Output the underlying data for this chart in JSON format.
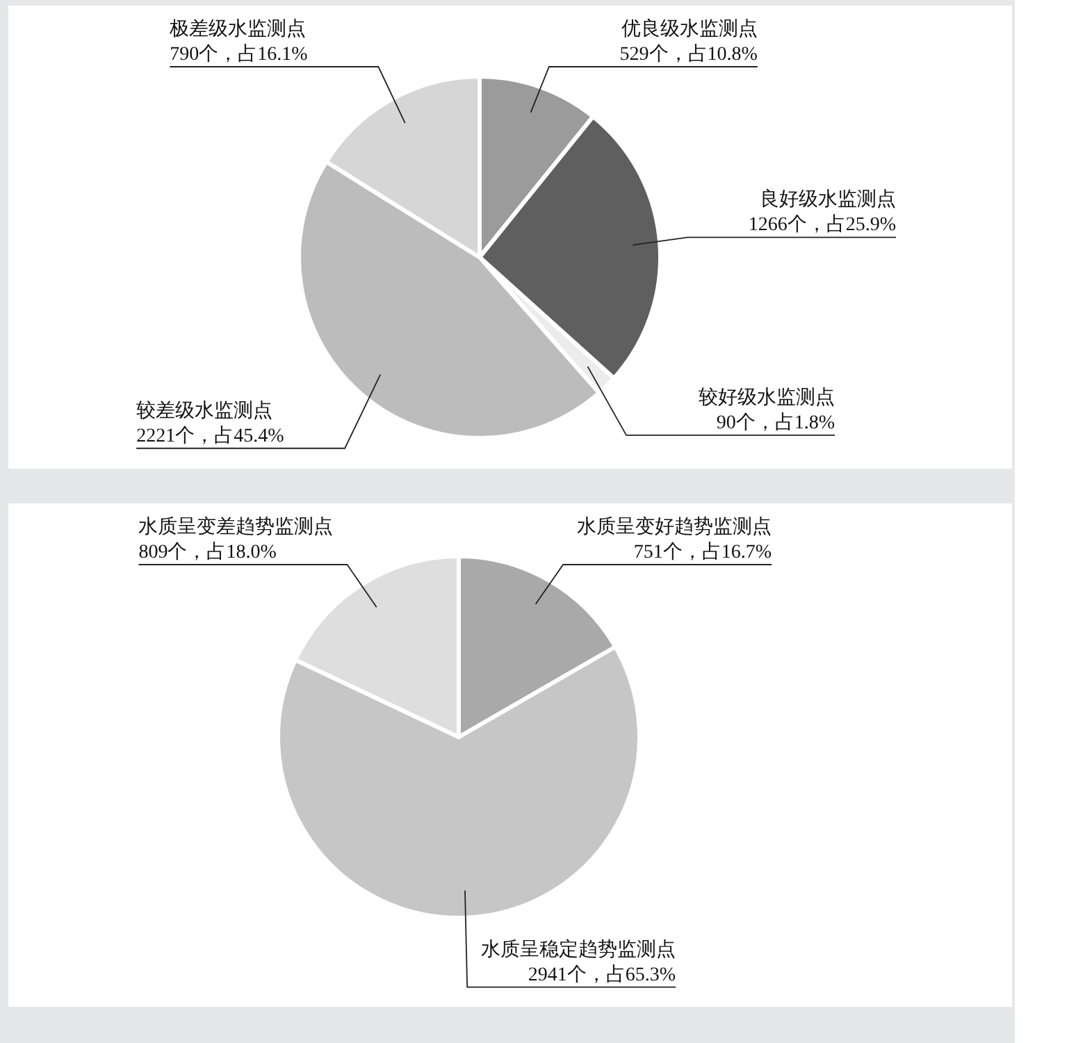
{
  "chart_data": [
    {
      "type": "pie",
      "categories": [
        "优良级水监测点",
        "良好级水监测点",
        "较好级水监测点",
        "较差级水监测点",
        "极差级水监测点"
      ],
      "values": [
        529,
        1266,
        90,
        2221,
        790
      ],
      "value_labels": [
        "529个，占10.8%",
        "1266个，占25.9%",
        "90个，占1.8%",
        "2221个，占45.4%",
        "790个，占16.1%"
      ],
      "colors": [
        "#9b9b9b",
        "#5f5f5f",
        "#ececec",
        "#bcbcbc",
        "#d6d6d6"
      ]
    },
    {
      "type": "pie",
      "categories": [
        "水质呈变好趋势监测点",
        "水质呈稳定趋势监测点",
        "水质呈变差趋势监测点"
      ],
      "values": [
        751,
        2941,
        809
      ],
      "value_labels": [
        "751个，占16.7%",
        "2941个，占65.3%",
        "809个，占18.0%"
      ],
      "colors": [
        "#a9a9a9",
        "#c6c6c6",
        "#dedede"
      ]
    }
  ]
}
